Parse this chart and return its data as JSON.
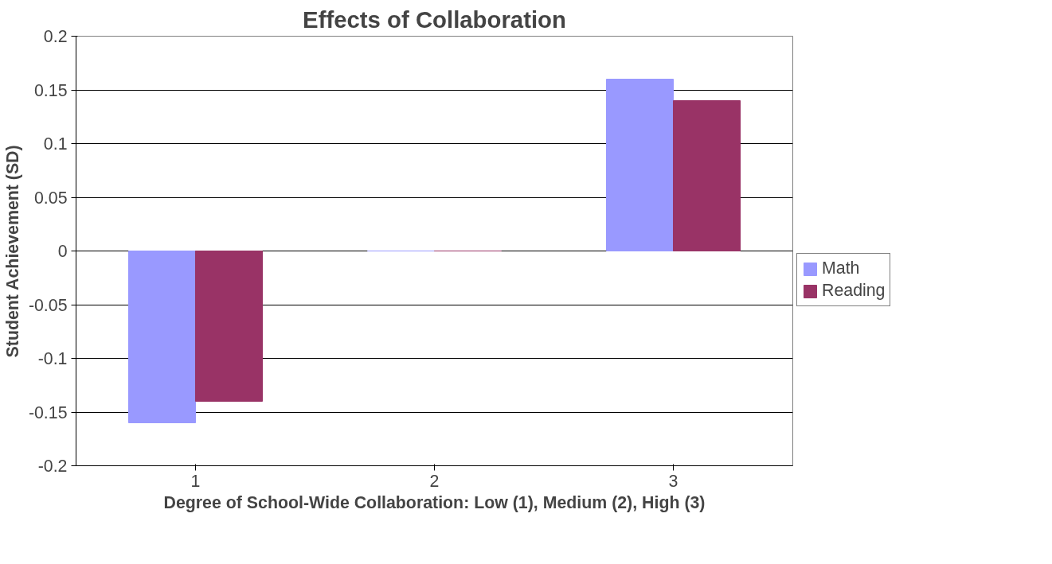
{
  "chart_data": {
    "type": "bar",
    "title": "Effects of Collaboration",
    "xlabel": "Degree of School-Wide Collaboration: Low (1), Medium (2), High (3)",
    "ylabel": "Student Achievement (SD)",
    "categories": [
      "1",
      "2",
      "3"
    ],
    "series": [
      {
        "name": "Math",
        "color": "#9999ff",
        "values": [
          -0.16,
          0,
          0.16
        ]
      },
      {
        "name": "Reading",
        "color": "#993366",
        "values": [
          -0.14,
          0,
          0.14
        ]
      }
    ],
    "ylim": [
      -0.2,
      0.2
    ],
    "yticks": [
      {
        "value": -0.2,
        "label": "-0.2"
      },
      {
        "value": -0.15,
        "label": "-0.15"
      },
      {
        "value": -0.1,
        "label": "-0.1"
      },
      {
        "value": -0.05,
        "label": "-0.05"
      },
      0,
      0.05,
      0.1,
      0.15,
      0.2
    ],
    "grid": "y",
    "legend": "right"
  }
}
